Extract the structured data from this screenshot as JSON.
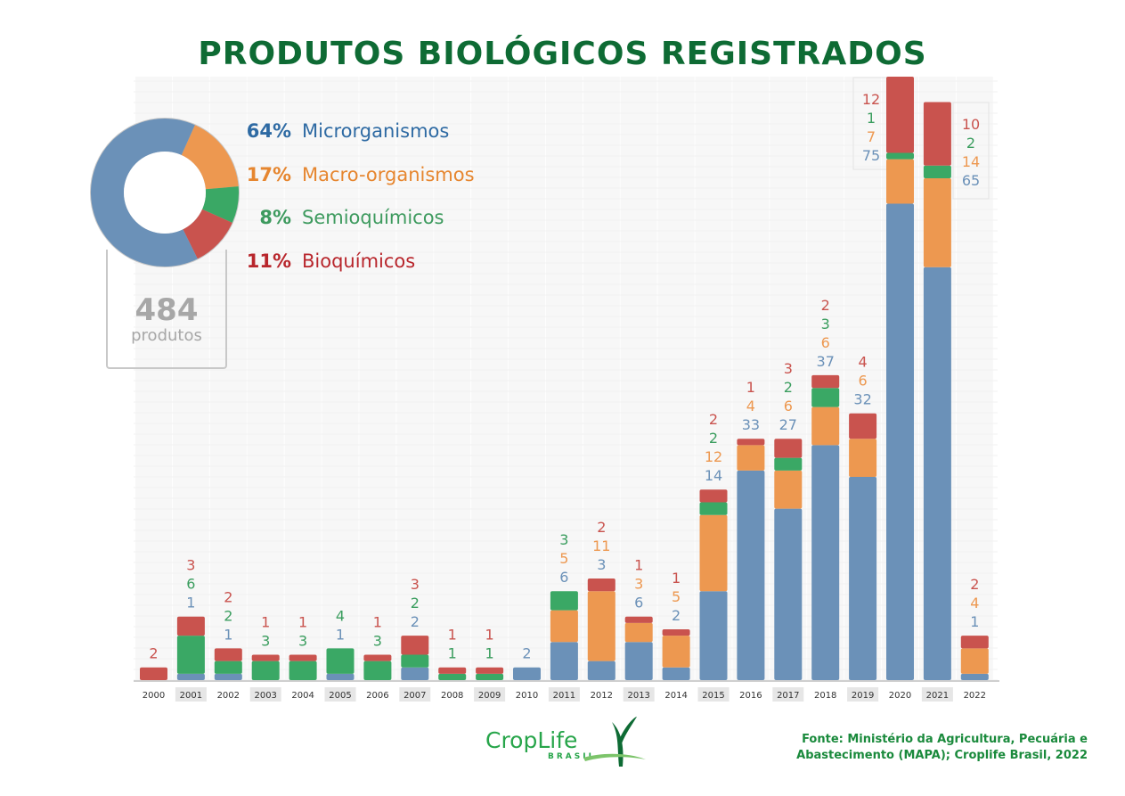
{
  "title": "PRODUTOS BIOLÓGICOS REGISTRADOS",
  "summary": {
    "total_value": "484",
    "total_label": "produtos",
    "legend": [
      {
        "pct": "64%",
        "label": "Microrganismos",
        "color": "#2e6aa3",
        "slice_color": "#6b91b8"
      },
      {
        "pct": "17%",
        "label": "Macro-organismos",
        "color": "#e6862f",
        "slice_color": "#ed9850"
      },
      {
        "pct": "8%",
        "label": "Semioquímicos",
        "color": "#3d9a5e",
        "slice_color": "#3aa865"
      },
      {
        "pct": "11%",
        "label": "Bioquímicos",
        "color": "#b8262c",
        "slice_color": "#c9534e"
      }
    ]
  },
  "source": {
    "line1": "Fonte: Ministério da Agricultura, Pecuária e",
    "line2": "Abastecimento (MAPA); Croplife Brasil, 2022"
  },
  "logo": {
    "name": "CropLife",
    "sub": "BRASIL"
  },
  "chart_data": [
    {
      "type": "pie",
      "title": "484 produtos",
      "categories": [
        "Microrganismos",
        "Macro-organismos",
        "Semioquímicos",
        "Bioquímicos"
      ],
      "values": [
        64,
        17,
        8,
        11
      ]
    },
    {
      "type": "bar",
      "stacked": true,
      "title": "PRODUTOS BIOLÓGICOS REGISTRADOS",
      "xlabel": "",
      "ylabel": "",
      "ylim": [
        0,
        95
      ],
      "grid": false,
      "categories": [
        "2000",
        "2001",
        "2002",
        "2003",
        "2004",
        "2005",
        "2006",
        "2007",
        "2008",
        "2009",
        "2010",
        "2011",
        "2012",
        "2013",
        "2014",
        "2015",
        "2016",
        "2017",
        "2018",
        "2019",
        "2020",
        "2021",
        "2022"
      ],
      "highlighted_ticks": [
        "2001",
        "2003",
        "2005",
        "2007",
        "2009",
        "2011",
        "2013",
        "2015",
        "2017",
        "2019",
        "2021"
      ],
      "series": [
        {
          "name": "Microrganismos",
          "color": "#6b91b8",
          "label_color": "#6b91b8",
          "values": [
            0,
            1,
            1,
            0,
            0,
            1,
            0,
            2,
            0,
            0,
            2,
            6,
            3,
            6,
            2,
            14,
            33,
            27,
            37,
            32,
            75,
            65,
            1
          ]
        },
        {
          "name": "Macro-organismos",
          "color": "#ed9850",
          "label_color": "#ed9850",
          "values": [
            0,
            0,
            0,
            0,
            0,
            0,
            0,
            0,
            0,
            0,
            0,
            5,
            11,
            3,
            5,
            12,
            4,
            6,
            6,
            6,
            7,
            14,
            4
          ]
        },
        {
          "name": "Semioquímicos",
          "color": "#3aa865",
          "label_color": "#3a9d5e",
          "values": [
            0,
            6,
            2,
            3,
            3,
            4,
            3,
            2,
            1,
            1,
            0,
            3,
            0,
            0,
            0,
            2,
            0,
            2,
            3,
            0,
            1,
            2,
            0
          ]
        },
        {
          "name": "Bioquímicos",
          "color": "#c9534e",
          "label_color": "#c9534e",
          "values": [
            2,
            3,
            2,
            1,
            1,
            0,
            1,
            3,
            1,
            1,
            0,
            0,
            2,
            1,
            1,
            2,
            1,
            3,
            2,
            4,
            12,
            10,
            2
          ]
        }
      ]
    }
  ]
}
